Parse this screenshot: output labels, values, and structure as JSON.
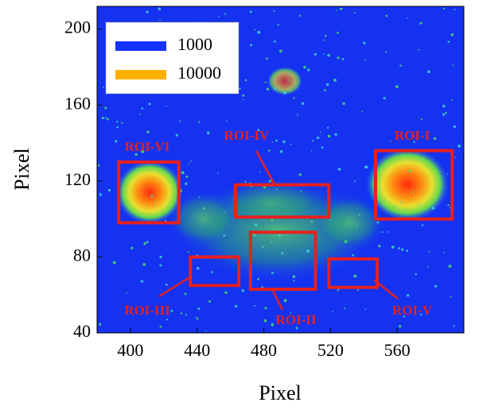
{
  "chart_data": {
    "type": "heatmap",
    "xlabel": "Pixel",
    "ylabel": "Pixel",
    "xlim": [
      380,
      600
    ],
    "ylim": [
      40,
      212
    ],
    "xticks": [
      400,
      440,
      480,
      520,
      560
    ],
    "yticks": [
      40,
      80,
      120,
      160,
      200
    ],
    "legend": "upper left",
    "series": [
      {
        "name": "1000",
        "color": "#1432ff"
      },
      {
        "name": "10000",
        "color": "#ffb000"
      }
    ],
    "rois": [
      {
        "label": "ROI-I",
        "x": [
          547,
          593
        ],
        "y": [
          100,
          136
        ],
        "color": "#e8201e"
      },
      {
        "label": "ROI-II",
        "x": [
          472,
          511
        ],
        "y": [
          63,
          93
        ],
        "color": "#e8201e"
      },
      {
        "label": "ROI-III",
        "x": [
          436,
          465
        ],
        "y": [
          65,
          80
        ],
        "color": "#e8201e"
      },
      {
        "label": "ROI-IV",
        "x": [
          463,
          519
        ],
        "y": [
          101,
          118
        ],
        "color": "#e8201e"
      },
      {
        "label": "ROI-V",
        "x": [
          519,
          548
        ],
        "y": [
          64,
          79
        ],
        "color": "#e8201e"
      },
      {
        "label": "ROI-VI",
        "x": [
          393,
          429
        ],
        "y": [
          98,
          130
        ],
        "color": "#e8201e"
      }
    ]
  }
}
